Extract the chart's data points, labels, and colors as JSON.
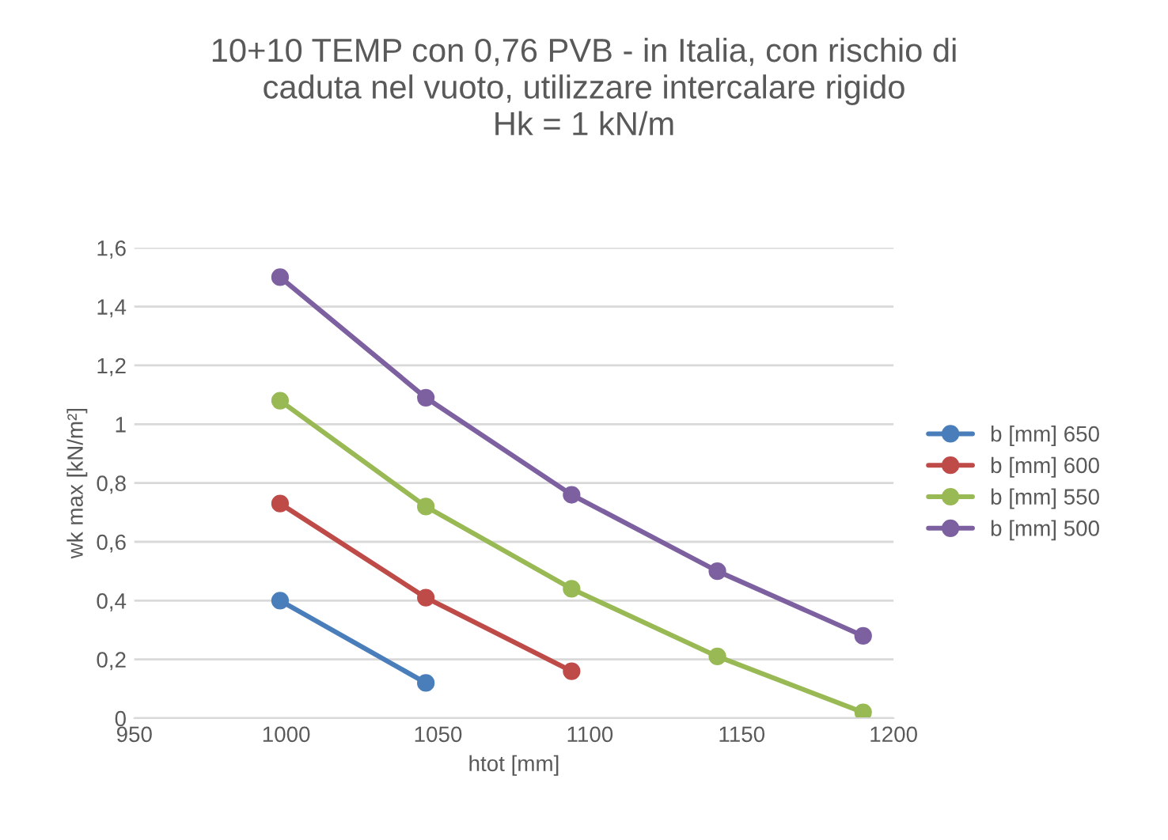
{
  "chart_data": {
    "type": "line",
    "title": "10+10 TEMP con 0,76 PVB - in Italia, con rischio di\ncaduta nel vuoto, utilizzare intercalare rigido\nHk = 1 kN/m",
    "xlabel": "htot [mm]",
    "ylabel": "wk max [kN/m²]",
    "xlim": [
      950,
      1200
    ],
    "xticks": [
      950,
      1000,
      1050,
      1100,
      1150,
      1200
    ],
    "ylim": [
      0,
      1.6
    ],
    "yticks": [
      0,
      {
        "value": 0.2,
        "label": "0,2"
      },
      {
        "value": 0.4,
        "label": "0,4"
      },
      {
        "value": 0.6,
        "label": "0,6"
      },
      {
        "value": 0.8,
        "label": "0,8"
      },
      1,
      {
        "value": 1.2,
        "label": "1,2"
      },
      {
        "value": 1.4,
        "label": "1,4"
      },
      {
        "value": 1.6,
        "label": "1,6"
      }
    ],
    "grid": "y",
    "legend": "right",
    "marker": "circle",
    "line_style": "solid",
    "series": [
      {
        "name": "b [mm] 650",
        "color": "#4a7ebb",
        "x": [
          998,
          1046
        ],
        "values": [
          0.4,
          0.12
        ]
      },
      {
        "name": "b [mm] 600",
        "color": "#be4b48",
        "x": [
          998,
          1046,
          1094
        ],
        "values": [
          0.73,
          0.41,
          0.16
        ]
      },
      {
        "name": "b [mm] 550",
        "color": "#98b954",
        "x": [
          998,
          1046,
          1094,
          1142,
          1190
        ],
        "values": [
          1.08,
          0.72,
          0.44,
          0.21,
          0.02
        ]
      },
      {
        "name": "b [mm] 500",
        "color": "#7d60a0",
        "x": [
          998,
          1046,
          1094,
          1142,
          1190
        ],
        "values": [
          1.5,
          1.09,
          0.76,
          0.5,
          0.28
        ]
      }
    ]
  }
}
